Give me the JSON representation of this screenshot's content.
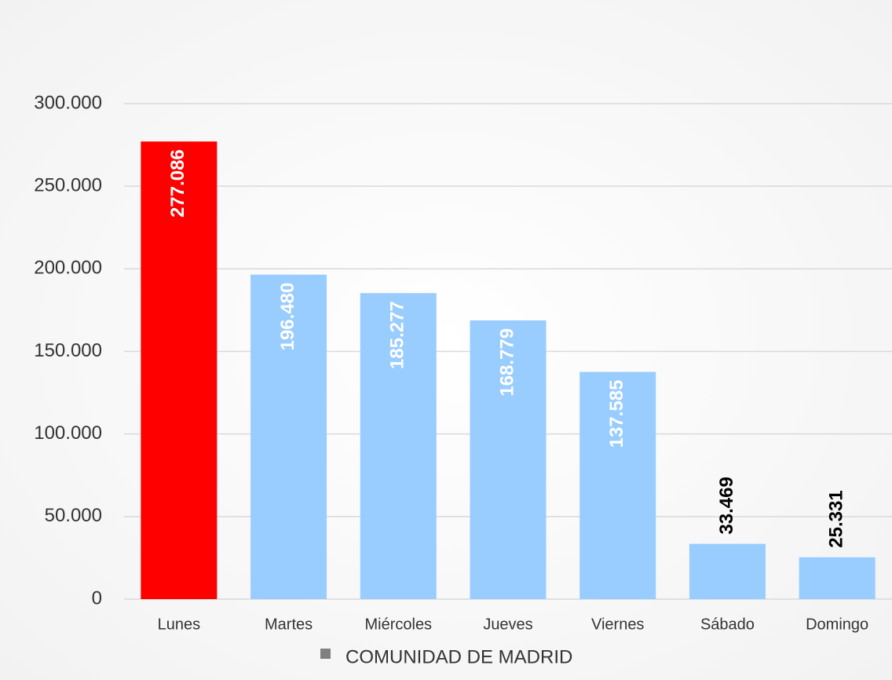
{
  "chart_data": {
    "type": "bar",
    "categories": [
      "Lunes",
      "Martes",
      "Miércoles",
      "Jueves",
      "Viernes",
      "Sábado",
      "Domingo"
    ],
    "series": [
      {
        "name": "COMUNIDAD DE MADRID",
        "color": "#808080",
        "colors": [
          "#ff0000",
          "#99ccff",
          "#99ccff",
          "#99ccff",
          "#99ccff",
          "#99ccff",
          "#99ccff"
        ],
        "values": [
          277086,
          196480,
          185277,
          168779,
          137585,
          33469,
          25331
        ],
        "value_labels": [
          "277.086",
          "196.480",
          "185.277",
          "168.779",
          "137.585",
          "33.469",
          "25.331"
        ]
      }
    ],
    "ylim": [
      0,
      300000
    ],
    "yticks": [
      0,
      {
        "value": 50000,
        "label": "50.000"
      },
      {
        "value": 100000,
        "label": "100.000"
      },
      {
        "value": 150000,
        "label": "150.000"
      },
      {
        "value": 200000,
        "label": "200.000"
      },
      {
        "value": 250000,
        "label": "250.000"
      },
      {
        "value": 300000,
        "label": "300.000"
      }
    ],
    "grid": true,
    "legend": "bottom"
  }
}
